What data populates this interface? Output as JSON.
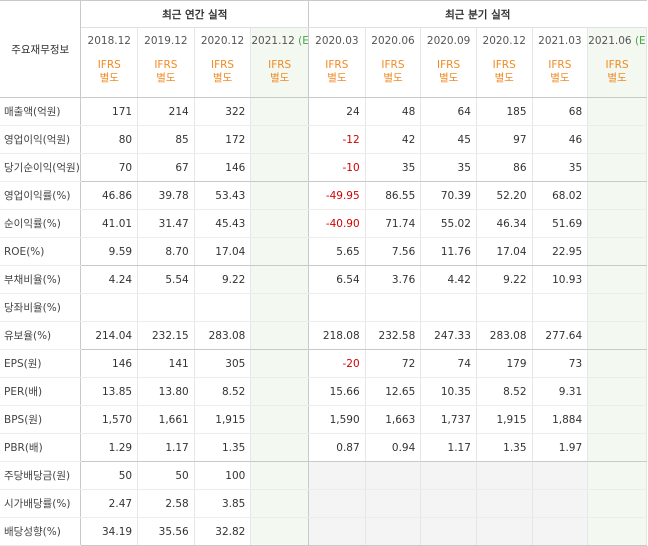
{
  "header": {
    "row_label": "주요재무정보",
    "annual_title": "최근 연간 실적",
    "quarter_title": "최근 분기 실적",
    "periods": [
      {
        "label": "2018.12",
        "est": ""
      },
      {
        "label": "2019.12",
        "est": ""
      },
      {
        "label": "2020.12",
        "est": ""
      },
      {
        "label": "2021.12",
        "est": "(E)"
      },
      {
        "label": "2020.03",
        "est": ""
      },
      {
        "label": "2020.06",
        "est": ""
      },
      {
        "label": "2020.09",
        "est": ""
      },
      {
        "label": "2020.12",
        "est": ""
      },
      {
        "label": "2021.03",
        "est": ""
      },
      {
        "label": "2021.06",
        "est": "(E)"
      }
    ],
    "ifrs_line1": "IFRS",
    "ifrs_line2": "별도"
  },
  "rows": [
    {
      "label": "매출액(억원)",
      "values": [
        "171",
        "214",
        "322",
        "",
        "24",
        "48",
        "64",
        "185",
        "68",
        ""
      ]
    },
    {
      "label": "영업이익(억원)",
      "values": [
        "80",
        "85",
        "172",
        "",
        "-12",
        "42",
        "45",
        "97",
        "46",
        ""
      ]
    },
    {
      "label": "당기순이익(억원)",
      "values": [
        "70",
        "67",
        "146",
        "",
        "-10",
        "35",
        "35",
        "86",
        "35",
        ""
      ]
    },
    {
      "label": "영업이익률(%)",
      "values": [
        "46.86",
        "39.78",
        "53.43",
        "",
        "-49.95",
        "86.55",
        "70.39",
        "52.20",
        "68.02",
        ""
      ]
    },
    {
      "label": "순이익률(%)",
      "values": [
        "41.01",
        "31.47",
        "45.43",
        "",
        "-40.90",
        "71.74",
        "55.02",
        "46.34",
        "51.69",
        ""
      ]
    },
    {
      "label": "ROE(%)",
      "values": [
        "9.59",
        "8.70",
        "17.04",
        "",
        "5.65",
        "7.56",
        "11.76",
        "17.04",
        "22.95",
        ""
      ]
    },
    {
      "label": "부채비율(%)",
      "values": [
        "4.24",
        "5.54",
        "9.22",
        "",
        "6.54",
        "3.76",
        "4.42",
        "9.22",
        "10.93",
        ""
      ]
    },
    {
      "label": "당좌비율(%)",
      "values": [
        "",
        "",
        "",
        "",
        "",
        "",
        "",
        "",
        "",
        ""
      ]
    },
    {
      "label": "유보율(%)",
      "values": [
        "214.04",
        "232.15",
        "283.08",
        "",
        "218.08",
        "232.58",
        "247.33",
        "283.08",
        "277.64",
        ""
      ]
    },
    {
      "label": "EPS(원)",
      "values": [
        "146",
        "141",
        "305",
        "",
        "-20",
        "72",
        "74",
        "179",
        "73",
        ""
      ]
    },
    {
      "label": "PER(배)",
      "values": [
        "13.85",
        "13.80",
        "8.52",
        "",
        "15.66",
        "12.65",
        "10.35",
        "8.52",
        "9.31",
        ""
      ]
    },
    {
      "label": "BPS(원)",
      "values": [
        "1,570",
        "1,661",
        "1,915",
        "",
        "1,590",
        "1,663",
        "1,737",
        "1,915",
        "1,884",
        ""
      ]
    },
    {
      "label": "PBR(배)",
      "values": [
        "1.29",
        "1.17",
        "1.35",
        "",
        "0.87",
        "0.94",
        "1.17",
        "1.35",
        "1.97",
        ""
      ]
    },
    {
      "label": "주당배당금(원)",
      "values": [
        "50",
        "50",
        "100",
        "",
        "",
        "",
        "",
        "",
        "",
        ""
      ]
    },
    {
      "label": "시가배당률(%)",
      "values": [
        "2.47",
        "2.58",
        "3.85",
        "",
        "",
        "",
        "",
        "",
        "",
        ""
      ]
    },
    {
      "label": "배당성향(%)",
      "values": [
        "34.19",
        "35.56",
        "32.82",
        "",
        "",
        "",
        "",
        "",
        "",
        ""
      ]
    }
  ],
  "colors": {
    "negative": "#d40000",
    "ifrs": "#f08a24",
    "estimate": "#4aa14a",
    "estimate_column_bg": "#f3f8f1",
    "empty_bg": "#f4f4f4"
  }
}
